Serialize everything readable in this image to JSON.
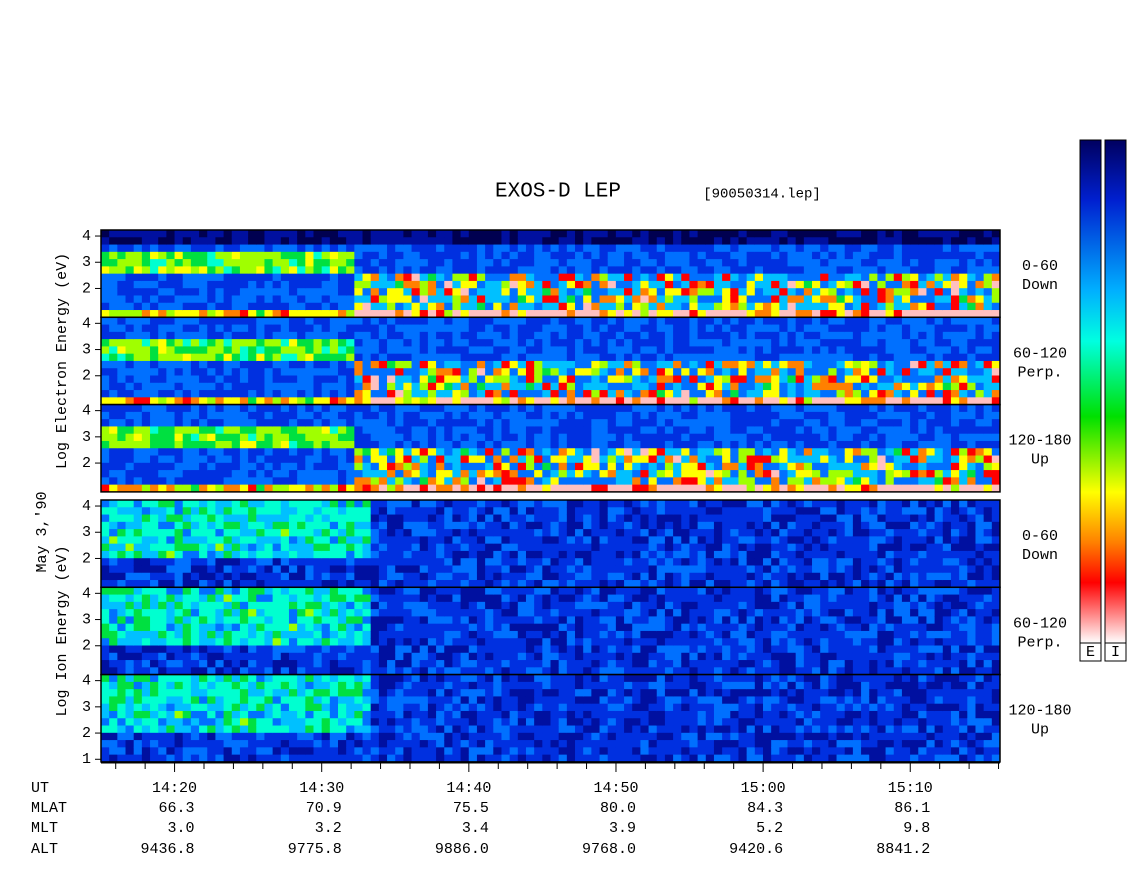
{
  "title": "EXOS-D LEP",
  "file": "[90050314.lep]",
  "date": "May 3,'90",
  "ylim": [
    0.9,
    4.23
  ],
  "xlim": [
    855,
    916.1
  ],
  "xticks": [
    {
      "value": 860,
      "label": "14:20"
    },
    {
      "value": 870,
      "label": "14:30"
    },
    {
      "value": 880,
      "label": "14:40"
    },
    {
      "value": 890,
      "label": "14:50"
    },
    {
      "value": 900,
      "label": "15:00"
    },
    {
      "value": 910,
      "label": "15:10"
    }
  ],
  "xminorticks": [
    856,
    858,
    862,
    864,
    866,
    868,
    872,
    874,
    876,
    878,
    882,
    884,
    886,
    888,
    892,
    894,
    896,
    898,
    902,
    904,
    906,
    908,
    912,
    914,
    916
  ],
  "groups": [
    {
      "ylabel": "Log Electron Energy (eV)",
      "colorbar": "E",
      "panels": [
        {
          "side": [
            "0-60",
            "Down"
          ],
          "yticks": [
            2,
            3,
            4
          ]
        },
        {
          "side": [
            "60-120",
            "Perp."
          ],
          "yticks": [
            2,
            3,
            4
          ]
        },
        {
          "side": [
            "120-180",
            "Up"
          ],
          "yticks": [
            2,
            3,
            4
          ]
        }
      ]
    },
    {
      "ylabel": "Log Ion Energy (eV)",
      "colorbar": "I",
      "panels": [
        {
          "side": [
            "0-60",
            "Down"
          ],
          "yticks": [
            2,
            3,
            4
          ]
        },
        {
          "side": [
            "60-120",
            "Perp."
          ],
          "yticks": [
            2,
            3,
            4
          ]
        },
        {
          "side": [
            "120-180",
            "Up"
          ],
          "yticks": [
            1,
            2,
            3,
            4
          ]
        }
      ]
    }
  ],
  "ephemeris": {
    "labels": [
      "UT",
      "MLAT",
      "MLT",
      "ALT"
    ],
    "rows": [
      [
        "66.3",
        "70.9",
        "75.5",
        "80.0",
        "84.3",
        "86.1"
      ],
      [
        "3.0",
        "3.2",
        "3.4",
        "3.9",
        "5.2",
        "9.8"
      ],
      [
        "9436.8",
        "9775.8",
        "9886.0",
        "9768.0",
        "9420.6",
        "8841.2"
      ]
    ]
  }
}
